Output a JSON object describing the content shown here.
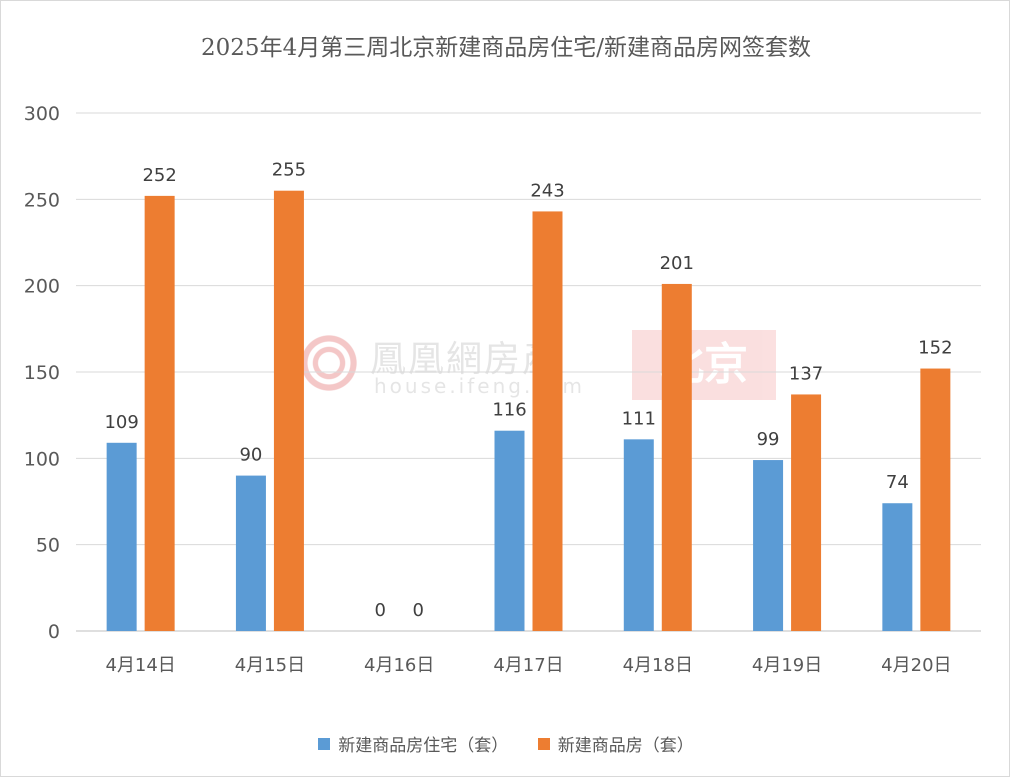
{
  "chart_data": {
    "type": "bar",
    "title": "2025年4月第三周北京新建商品房住宅/新建商品房网签套数",
    "categories": [
      "4月14日",
      "4月15日",
      "4月16日",
      "4月17日",
      "4月18日",
      "4月19日",
      "4月20日"
    ],
    "series": [
      {
        "name": "新建商品房住宅（套）",
        "color": "#5b9bd5",
        "values": [
          109,
          90,
          0,
          116,
          111,
          99,
          74
        ]
      },
      {
        "name": "新建商品房（套）",
        "color": "#ed7d31",
        "values": [
          252,
          255,
          0,
          243,
          201,
          137,
          152
        ]
      }
    ],
    "ylim": [
      0,
      300
    ],
    "yticks": [
      0,
      50,
      100,
      150,
      200,
      250,
      300
    ],
    "grid": true,
    "legend_position": "bottom",
    "data_labels": true
  },
  "watermark": {
    "brand": "鳳凰網房產",
    "url": "house.ifeng.com",
    "city": "北京"
  }
}
